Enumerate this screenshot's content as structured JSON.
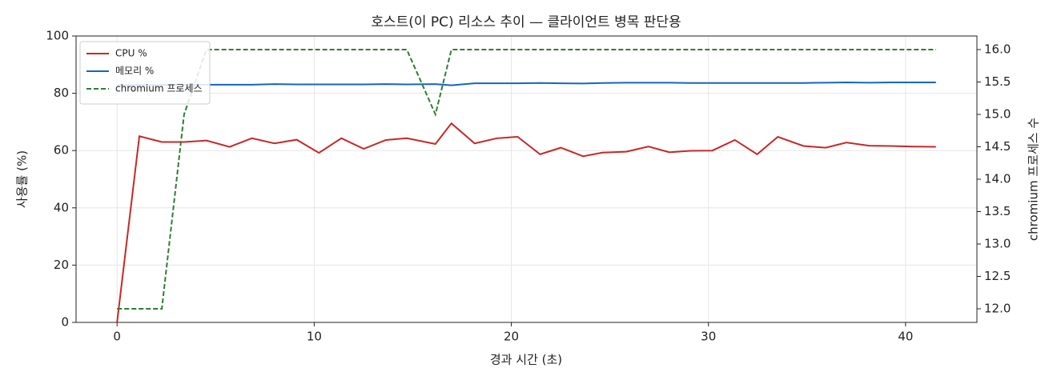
{
  "chart_data": {
    "type": "line",
    "title": "호스트(이 PC) 리소스 추이 — 클라이언트 병목 판단용",
    "x_label": "경과 시간 (초)",
    "y_label": "사용률 (%)",
    "y2_label": "chromium 프로세스 수",
    "x": [
      0,
      1.13,
      2.27,
      3.4,
      4.53,
      5.71,
      6.84,
      7.98,
      9.11,
      10.24,
      11.38,
      12.51,
      13.64,
      14.7,
      16.15,
      16.96,
      18.14,
      19.27,
      20.32,
      21.46,
      22.51,
      23.64,
      24.62,
      25.83,
      26.96,
      28.02,
      29.07,
      30.2,
      31.34,
      32.47,
      33.52,
      34.82,
      35.95,
      37.0,
      38.14,
      39.27,
      40.4,
      41.54
    ],
    "series": [
      {
        "name": "CPU %",
        "color": "#c62828",
        "linestyle": "solid",
        "values": [
          0,
          65,
          63,
          63,
          63.5,
          61.3,
          64.3,
          62.5,
          63.8,
          59.2,
          64.3,
          60.6,
          63.7,
          64.3,
          62.3,
          69.5,
          62.5,
          64.3,
          64.8,
          58.7,
          61,
          58,
          59.3,
          59.6,
          61.4,
          59.4,
          59.9,
          60,
          63.7,
          58.7,
          64.8,
          61.6,
          61,
          62.8,
          61.7,
          61.6,
          61.4,
          61.3
        ]
      },
      {
        "name": "메모리 %",
        "color": "#1565c0",
        "linestyle": "solid",
        "values": [
          82.8,
          82.9,
          82.9,
          83.0,
          83.0,
          83.0,
          83.0,
          83.2,
          83.1,
          83.1,
          83.1,
          83.1,
          83.2,
          83.1,
          83.2,
          82.8,
          83.5,
          83.5,
          83.5,
          83.6,
          83.5,
          83.4,
          83.6,
          83.7,
          83.7,
          83.7,
          83.6,
          83.6,
          83.6,
          83.6,
          83.6,
          83.6,
          83.7,
          83.8,
          83.7,
          83.8,
          83.8,
          83.8
        ]
      },
      {
        "name": "chromium 프로세스",
        "color": "#2e7d32",
        "linestyle": "dashed",
        "axis": "y2",
        "values": [
          12,
          12,
          12,
          15,
          16,
          16,
          16,
          16,
          16,
          16,
          16,
          16,
          16,
          16,
          15,
          16,
          16,
          16,
          16,
          16,
          16,
          16,
          16,
          16,
          16,
          16,
          16,
          16,
          16,
          16,
          16,
          16,
          16,
          16,
          16,
          16,
          16,
          16
        ]
      }
    ],
    "xlim": [
      -2.08,
      43.62
    ],
    "xticks": [
      0,
      10,
      20,
      30,
      40
    ],
    "ylim": [
      0,
      100
    ],
    "yticks": [
      0,
      20,
      40,
      60,
      80,
      100
    ],
    "y2lim": [
      11.79,
      16.21
    ],
    "y2ticks": [
      {
        "value": 12,
        "label": "12.0"
      },
      {
        "value": 12.5,
        "label": "12.5"
      },
      {
        "value": 13,
        "label": "13.0"
      },
      {
        "value": 13.5,
        "label": "13.5"
      },
      {
        "value": 14,
        "label": "14.0"
      },
      {
        "value": 14.5,
        "label": "14.5"
      },
      {
        "value": 15,
        "label": "15.0"
      },
      {
        "value": 15.5,
        "label": "15.5"
      },
      {
        "value": 16,
        "label": "16.0"
      }
    ],
    "grid": true,
    "legend": "upper-left"
  }
}
